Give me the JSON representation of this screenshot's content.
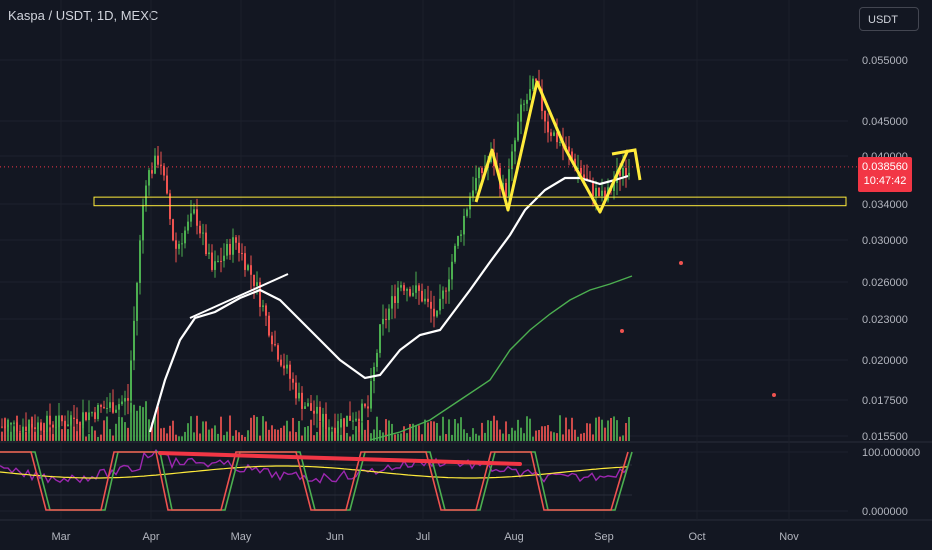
{
  "header": {
    "symbol_line": "Kaspa / USDT, 1D, MEXC"
  },
  "currency_button": {
    "label": "USDT"
  },
  "last_price": {
    "price": "0.038560",
    "countdown": "10:47:42"
  },
  "price_axis": {
    "labels": [
      "0.055000",
      "0.045000",
      "0.040000",
      "0.034000",
      "0.030000",
      "0.026000",
      "0.023000",
      "0.020000",
      "0.017500",
      "0.015500"
    ]
  },
  "oscillator_axis": {
    "labels": [
      "100.000000",
      "0.000000"
    ]
  },
  "time_axis": {
    "labels": [
      "Mar",
      "Apr",
      "May",
      "Jun",
      "Jul",
      "Aug",
      "Sep",
      "Oct",
      "Nov"
    ]
  },
  "colors": {
    "background": "#131722",
    "up": "#26a69a",
    "up_bright": "#4caf50",
    "down": "#ef5350",
    "annotation": "#ffeb3b",
    "ma_fast": "#ffffff",
    "ma_slow": "#4caf50",
    "last_price": "#f23645",
    "oscillator": "#9c27b0",
    "signal": "#ffeb3b",
    "divergence": "#f23645"
  },
  "chart_data": {
    "type": "line",
    "title": "Kaspa / USDT, 1D, MEXC",
    "y_scale": "log",
    "ylim": [
      0.0155,
      0.058
    ],
    "last_price": 0.03856,
    "resistance_zone": [
      0.0338,
      0.0348
    ],
    "x": [
      "Mar",
      "Apr",
      "May",
      "Jun",
      "Jul",
      "Aug",
      "Sep"
    ],
    "series": [
      {
        "values": [
          0.016,
          0.032,
          0.03,
          0.016,
          0.024,
          0.046,
          0.0385
        ]
      }
    ],
    "oscillator_ylim": [
      0,
      100
    ]
  }
}
